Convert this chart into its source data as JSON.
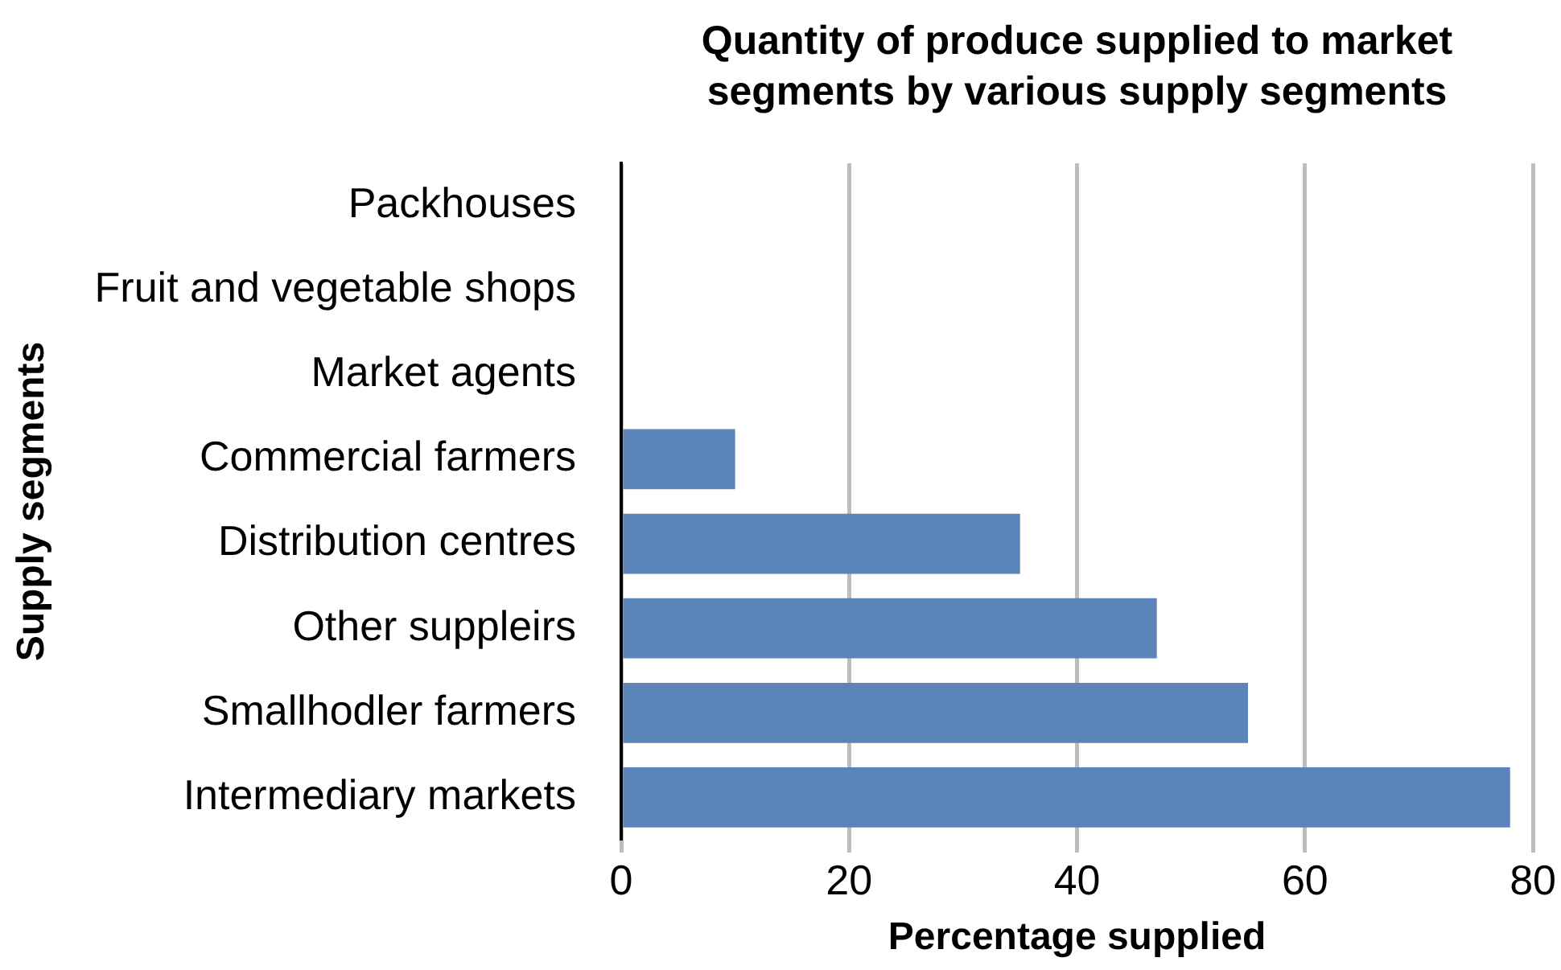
{
  "chart_data": {
    "type": "bar",
    "orientation": "horizontal",
    "title": "Quantity of produce supplied to market segments by various supply segments",
    "xlabel": "Percentage supplied",
    "ylabel": "Supply segments",
    "categories": [
      "Packhouses",
      "Fruit and vegetable shops",
      "Market agents",
      "Commercial farmers",
      "Distribution centres",
      "Other suppleirs",
      "Smallhodler farmers",
      "Intermediary markets"
    ],
    "values": [
      0,
      0,
      0,
      10,
      35,
      47,
      55,
      78
    ],
    "color": "#5b85b9",
    "xlim": [
      0,
      80
    ],
    "xticks": [
      0,
      20,
      40,
      60,
      80
    ],
    "grid": "x",
    "legend": false
  }
}
